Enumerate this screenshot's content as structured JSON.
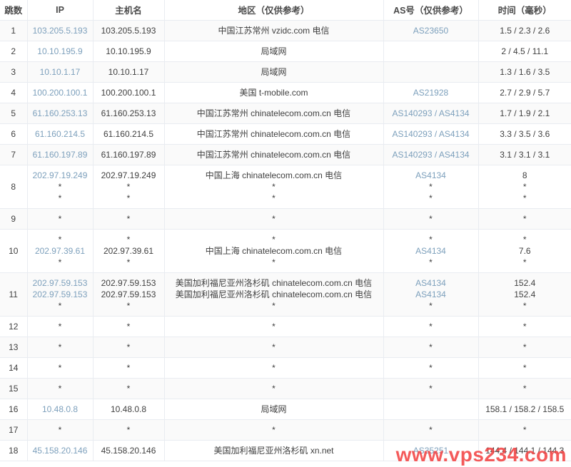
{
  "table": {
    "columns": [
      {
        "key": "hop",
        "label": "跳数"
      },
      {
        "key": "ip",
        "label": "IP"
      },
      {
        "key": "host",
        "label": "主机名"
      },
      {
        "key": "region",
        "label": "地区（仅供参考）"
      },
      {
        "key": "as",
        "label": "AS号（仅供参考）"
      },
      {
        "key": "time",
        "label": "时间（毫秒）"
      }
    ],
    "rows": [
      {
        "hop": "1",
        "ip": [
          "103.205.5.193"
        ],
        "host": [
          "103.205.5.193"
        ],
        "region": [
          "中国江苏常州 vzidc.com 电信"
        ],
        "as": [
          "AS23650"
        ],
        "time": [
          "1.5 / 2.3 / 2.6"
        ]
      },
      {
        "hop": "2",
        "ip": [
          "10.10.195.9"
        ],
        "host": [
          "10.10.195.9"
        ],
        "region": [
          "局域网"
        ],
        "as": [
          ""
        ],
        "time": [
          "2 / 4.5 / 11.1"
        ]
      },
      {
        "hop": "3",
        "ip": [
          "10.10.1.17"
        ],
        "host": [
          "10.10.1.17"
        ],
        "region": [
          "局域网"
        ],
        "as": [
          ""
        ],
        "time": [
          "1.3 / 1.6 / 3.5"
        ]
      },
      {
        "hop": "4",
        "ip": [
          "100.200.100.1"
        ],
        "host": [
          "100.200.100.1"
        ],
        "region": [
          "美国 t-mobile.com"
        ],
        "as": [
          "AS21928"
        ],
        "time": [
          "2.7 / 2.9 / 5.7"
        ]
      },
      {
        "hop": "5",
        "ip": [
          "61.160.253.13"
        ],
        "host": [
          "61.160.253.13"
        ],
        "region": [
          "中国江苏常州 chinatelecom.com.cn 电信"
        ],
        "as": [
          "AS140293 / AS4134"
        ],
        "time": [
          "1.7 / 1.9 / 2.1"
        ]
      },
      {
        "hop": "6",
        "ip": [
          "61.160.214.5"
        ],
        "host": [
          "61.160.214.5"
        ],
        "region": [
          "中国江苏常州 chinatelecom.com.cn 电信"
        ],
        "as": [
          "AS140293 / AS4134"
        ],
        "time": [
          "3.3 / 3.5 / 3.6"
        ]
      },
      {
        "hop": "7",
        "ip": [
          "61.160.197.89"
        ],
        "host": [
          "61.160.197.89"
        ],
        "region": [
          "中国江苏常州 chinatelecom.com.cn 电信"
        ],
        "as": [
          "AS140293 / AS4134"
        ],
        "time": [
          "3.1 / 3.1 / 3.1"
        ]
      },
      {
        "hop": "8",
        "ip": [
          "202.97.19.249",
          "*",
          "*"
        ],
        "host": [
          "202.97.19.249",
          "*",
          "*"
        ],
        "region": [
          "中国上海 chinatelecom.com.cn 电信",
          "*",
          "*"
        ],
        "as": [
          "AS4134",
          "*",
          "*"
        ],
        "time": [
          "8",
          "*",
          "*"
        ]
      },
      {
        "hop": "9",
        "ip": [
          "*"
        ],
        "host": [
          "*"
        ],
        "region": [
          "*"
        ],
        "as": [
          "*"
        ],
        "time": [
          "*"
        ]
      },
      {
        "hop": "10",
        "ip": [
          "*",
          "202.97.39.61",
          "*"
        ],
        "host": [
          "*",
          "202.97.39.61",
          "*"
        ],
        "region": [
          "*",
          "中国上海 chinatelecom.com.cn 电信",
          "*"
        ],
        "as": [
          "*",
          "AS4134",
          "*"
        ],
        "time": [
          "*",
          "7.6",
          "*"
        ]
      },
      {
        "hop": "11",
        "ip": [
          "202.97.59.153",
          "202.97.59.153",
          "*"
        ],
        "host": [
          "202.97.59.153",
          "202.97.59.153",
          "*"
        ],
        "region": [
          "美国加利福尼亚州洛杉矶 chinatelecom.com.cn 电信",
          "美国加利福尼亚州洛杉矶 chinatelecom.com.cn 电信",
          "*"
        ],
        "as": [
          "AS4134",
          "AS4134",
          "*"
        ],
        "time": [
          "152.4",
          "152.4",
          "*"
        ]
      },
      {
        "hop": "12",
        "ip": [
          "*"
        ],
        "host": [
          "*"
        ],
        "region": [
          "*"
        ],
        "as": [
          "*"
        ],
        "time": [
          "*"
        ]
      },
      {
        "hop": "13",
        "ip": [
          "*"
        ],
        "host": [
          "*"
        ],
        "region": [
          "*"
        ],
        "as": [
          "*"
        ],
        "time": [
          "*"
        ]
      },
      {
        "hop": "14",
        "ip": [
          "*"
        ],
        "host": [
          "*"
        ],
        "region": [
          "*"
        ],
        "as": [
          "*"
        ],
        "time": [
          "*"
        ]
      },
      {
        "hop": "15",
        "ip": [
          "*"
        ],
        "host": [
          "*"
        ],
        "region": [
          "*"
        ],
        "as": [
          "*"
        ],
        "time": [
          "*"
        ]
      },
      {
        "hop": "16",
        "ip": [
          "10.48.0.8"
        ],
        "host": [
          "10.48.0.8"
        ],
        "region": [
          "局域网"
        ],
        "as": [
          ""
        ],
        "time": [
          "158.1 / 158.2 / 158.5"
        ]
      },
      {
        "hop": "17",
        "ip": [
          "*"
        ],
        "host": [
          "*"
        ],
        "region": [
          "*"
        ],
        "as": [
          "*"
        ],
        "time": [
          "*"
        ]
      },
      {
        "hop": "18",
        "ip": [
          "45.158.20.146"
        ],
        "host": [
          "45.158.20.146"
        ],
        "region": [
          "美国加利福尼亚州洛杉矶 xn.net"
        ],
        "as": [
          "AS35251"
        ],
        "time": [
          "144.4 / 144.1 / 144.3"
        ]
      }
    ]
  },
  "watermark": {
    "text": "www.vps234.com",
    "color": "rgba(243,67,67,0.88)"
  },
  "colors": {
    "link": "#7da0bc",
    "text": "#404040",
    "stripe": "#fafafa",
    "border": "#e9ecf1",
    "watermark_red": "#f34343"
  }
}
